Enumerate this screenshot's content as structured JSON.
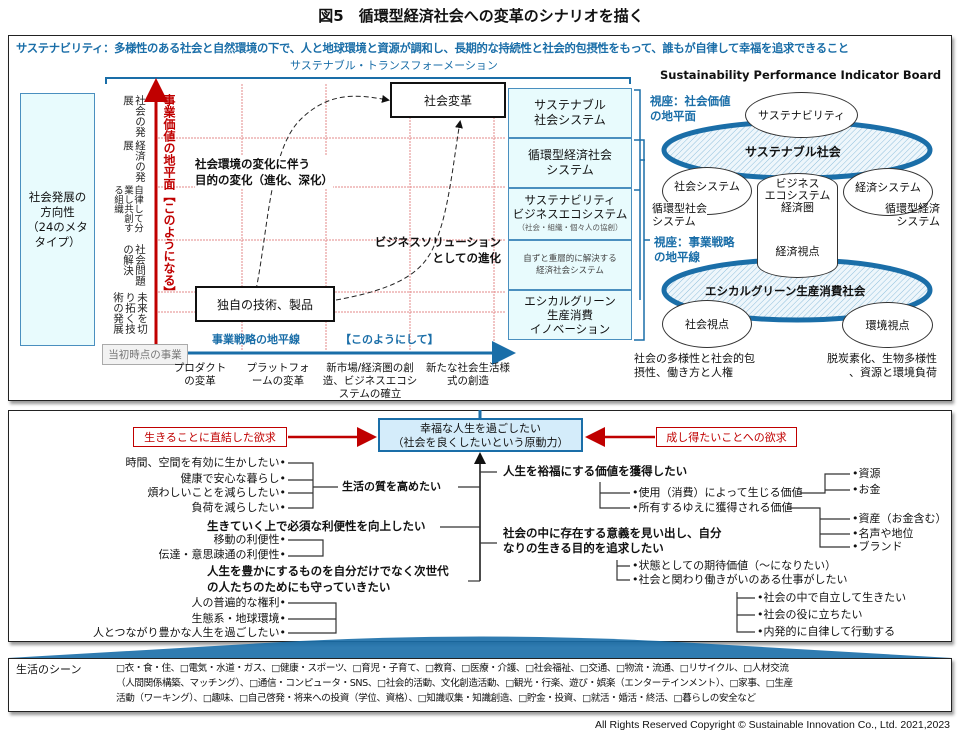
{
  "title": "図5　循環型経済社会への変革のシナリオを描く",
  "banner": "サステナビリティ：多様性のある社会と自然環境の下で、人と地球環境と資源が調和し、長期的な持続性と社会的包摂性をもって、誰もが自律して幸福を追求できること",
  "transformation_label": "サステナブル・トランスフォーメーション",
  "left_box": [
    "社会発展の",
    "方向性",
    "（24のメタ",
    "タイプ）"
  ],
  "row_labels": [
    "社会の発展",
    "経済の発展",
    "自律して分業し共創する組織",
    "社会問題の解決",
    "未来を切り拓く技術の発展"
  ],
  "y_axis_label": "事業価値の地平面【このようになる】",
  "x_axis_label": "事業戦略の地平線",
  "x_axis_label2": "【このようにして】",
  "start_label": "当初時点の事業",
  "x_categories": [
    "プロダクトの変革",
    "プラットフォームの変革",
    "新市場/経済圏の創造、ビジネスエコシステムの確立",
    "新たな社会生活様式の創造"
  ],
  "goal_box": "社会変革",
  "origin_box": "独自の技術、製品",
  "path1": [
    "社会環境の変化に伴う",
    "目的の変化（進化、深化）"
  ],
  "path2": [
    "ビジネスソリューション",
    "としての進化"
  ],
  "stack": [
    {
      "lines": [
        "サステナブル",
        "社会システム"
      ]
    },
    {
      "lines": [
        "循環型経済社会",
        "システム"
      ]
    },
    {
      "lines": [
        "サステナビリティ",
        "ビジネスエコシステム"
      ],
      "sub": "（社会・組織・個々人の協創）"
    },
    {
      "lines": [
        "自ずと重層的に解決する",
        "経済社会システム"
      ]
    },
    {
      "lines": [
        "エシカルグリーン",
        "生産消費",
        "イノベーション"
      ]
    }
  ],
  "board": {
    "title": "Sustainability Performance Indicator Board",
    "view1": [
      "視座：社会価値",
      "の地平面"
    ],
    "view2": [
      "視座：事業戦略",
      "の地平線"
    ],
    "sustainability": "サステナビリティ",
    "society_ring": "サステナブル社会",
    "social_system": "社会システム",
    "social_system_sub": [
      "循環型社会",
      "システム"
    ],
    "cylinder": [
      "ビジネス",
      "エコシステム",
      "経済圏"
    ],
    "economic_view": "経済視点",
    "economic_system": "経済システム",
    "economic_system_sub": [
      "循環型経済",
      "システム"
    ],
    "ethical_ring": "エシカルグリーン生産消費社会",
    "social_view": "社会視点",
    "env_view": "環境視点",
    "social_note": [
      "社会の多様性と社会的包",
      "摂性、働き方と人権"
    ],
    "env_note": [
      "脱炭素化、生物多様性",
      "、資源と環境負荷"
    ]
  },
  "needs": {
    "center": [
      "幸福な人生を過ごしたい",
      "（社会を良くしたいという原動力）"
    ],
    "left_label": "生きることに直結した欲求",
    "right_label": "成し得たいことへの欲求",
    "g1": {
      "title": "生活の質を高めたい",
      "items": [
        "時間、空間を有効に生かしたい",
        "健康で安心な暮らし",
        "煩わしいことを減らしたい",
        "負荷を減らしたい"
      ]
    },
    "g2": {
      "title": "生きていく上で必須な利便性を向上したい",
      "items": [
        "移動の利便性",
        "伝達・意思疎通の利便性"
      ]
    },
    "g3": {
      "title": [
        "人生を豊かにするものを自分だけでなく次世代",
        "の人たちのためにも守っていきたい"
      ],
      "items": [
        "人の普遍的な権利",
        "生態系・地球環境",
        "人とつながり豊かな人生を過ごしたい"
      ]
    },
    "g4": {
      "title": "人生を裕福にする価値を獲得したい",
      "use": "使用（消費）によって生じる価値",
      "use_items": [
        "資源",
        "お金"
      ],
      "own": "所有するゆえに獲得される価値",
      "own_items": [
        "資産（お金含む）",
        "名声や地位",
        "ブランド"
      ]
    },
    "g5": {
      "title": [
        "社会の中に存在する意義を見い出し、自分",
        "なりの生きる目的を追求したい"
      ],
      "items": [
        "状態としての期待価値（～になりたい）",
        "社会と関わり働きがいのある仕事がしたい"
      ],
      "sub_items": [
        "社会の中で自立して生きたい",
        "社会の役に立ちたい",
        "内発的に自律して行動する"
      ]
    }
  },
  "scenes": {
    "label": "生活のシーン",
    "lines": [
      "□衣・食・住、□電気・水道・ガス、□健康・スポーツ、□育児・子育て、□教育、□医療・介護、□社会福祉、□交通、□物流・流通、□リサイクル、□人材交流",
      "（人間関係構築、マッチング）、□通信・コンピュータ・SNS、□社会的活動、文化創造活動、□観光・行楽、遊び・娯楽（エンターテインメント）、□家事、□生産",
      "活動（ワーキング）、□趣味、□自己啓発・将来への投資（学位、資格）、□知識収集・知識創造、□貯金・投資、□就活・婚活・終活、□暮らしの安全など"
    ]
  },
  "copyright": "All Rights Reserved Copyright © Sustainable Innovation Co., Ltd.  2021,2023",
  "colors": {
    "blue": "#1a6ea8",
    "red": "#c00000",
    "cyan_fill": "#e8fbfd",
    "center_fill": "#d4ecfa"
  }
}
